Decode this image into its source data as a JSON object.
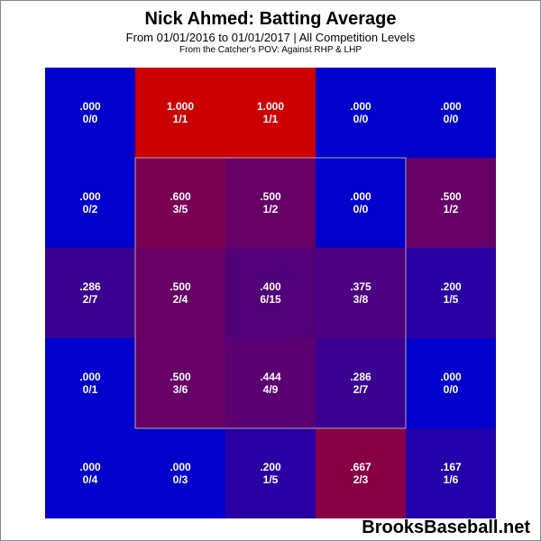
{
  "header": {
    "title": "Nick Ahmed: Batting Average",
    "subtitle": "From 01/01/2016 to 01/01/2017 | All Competition Levels",
    "note": "From the Catcher's POV:  Against RHP & LHP"
  },
  "watermark": "BrooksBaseball.net",
  "colors": {
    "cold": "#0000cc",
    "hot": "#cc0000",
    "strike_zone_border": "#aaaaaa",
    "label": "#ffffff"
  },
  "chart_data": {
    "type": "heatmap",
    "title": "Nick Ahmed: Batting Average",
    "rows": 5,
    "cols": 5,
    "strike_zone": {
      "rows": [
        1,
        3
      ],
      "cols": [
        1,
        3
      ]
    },
    "cells": [
      [
        {
          "avg": ".000",
          "ratio": "0/0",
          "value": 0.0
        },
        {
          "avg": "1.000",
          "ratio": "1/1",
          "value": 1.0
        },
        {
          "avg": "1.000",
          "ratio": "1/1",
          "value": 1.0
        },
        {
          "avg": ".000",
          "ratio": "0/0",
          "value": 0.0
        },
        {
          "avg": ".000",
          "ratio": "0/0",
          "value": 0.0
        }
      ],
      [
        {
          "avg": ".000",
          "ratio": "0/2",
          "value": 0.0
        },
        {
          "avg": ".600",
          "ratio": "3/5",
          "value": 0.6
        },
        {
          "avg": ".500",
          "ratio": "1/2",
          "value": 0.5
        },
        {
          "avg": ".000",
          "ratio": "0/0",
          "value": 0.0
        },
        {
          "avg": ".500",
          "ratio": "1/2",
          "value": 0.5
        }
      ],
      [
        {
          "avg": ".286",
          "ratio": "2/7",
          "value": 0.286
        },
        {
          "avg": ".500",
          "ratio": "2/4",
          "value": 0.5
        },
        {
          "avg": ".400",
          "ratio": "6/15",
          "value": 0.4
        },
        {
          "avg": ".375",
          "ratio": "3/8",
          "value": 0.375
        },
        {
          "avg": ".200",
          "ratio": "1/5",
          "value": 0.2
        }
      ],
      [
        {
          "avg": ".000",
          "ratio": "0/1",
          "value": 0.0
        },
        {
          "avg": ".500",
          "ratio": "3/6",
          "value": 0.5
        },
        {
          "avg": ".444",
          "ratio": "4/9",
          "value": 0.444
        },
        {
          "avg": ".286",
          "ratio": "2/7",
          "value": 0.286
        },
        {
          "avg": ".000",
          "ratio": "0/0",
          "value": 0.0
        }
      ],
      [
        {
          "avg": ".000",
          "ratio": "0/4",
          "value": 0.0
        },
        {
          "avg": ".000",
          "ratio": "0/3",
          "value": 0.0
        },
        {
          "avg": ".200",
          "ratio": "1/5",
          "value": 0.2
        },
        {
          "avg": ".667",
          "ratio": "2/3",
          "value": 0.667
        },
        {
          "avg": ".167",
          "ratio": "1/6",
          "value": 0.167
        }
      ]
    ]
  }
}
